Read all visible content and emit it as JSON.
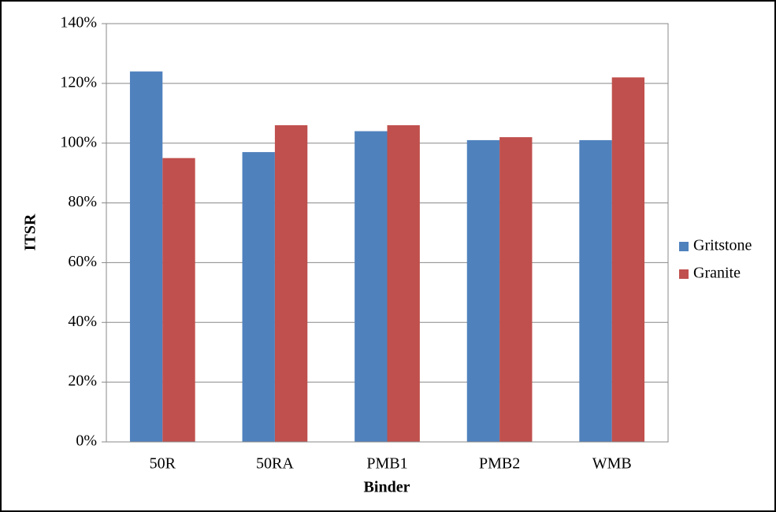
{
  "chart_data": {
    "type": "bar",
    "x_label": "Binder",
    "y_label": "ITSR",
    "categories": [
      "50R",
      "50RA",
      "PMB1",
      "PMB2",
      "WMB"
    ],
    "series": [
      {
        "name": "Gritstone",
        "color": "#4f81bd",
        "values": [
          124,
          97,
          104,
          101,
          101
        ]
      },
      {
        "name": "Granite",
        "color": "#c0504d",
        "values": [
          95,
          106,
          106,
          102,
          122
        ]
      }
    ],
    "ylim": [
      0,
      140
    ],
    "yticks": [
      {
        "value": 0,
        "label": "0%"
      },
      {
        "value": 20,
        "label": "20%"
      },
      {
        "value": 40,
        "label": "40%"
      },
      {
        "value": 60,
        "label": "60%"
      },
      {
        "value": 80,
        "label": "80%"
      },
      {
        "value": 100,
        "label": "100%"
      },
      {
        "value": 120,
        "label": "120%"
      },
      {
        "value": 140,
        "label": "140%"
      }
    ],
    "grid": true,
    "legend": "right"
  }
}
